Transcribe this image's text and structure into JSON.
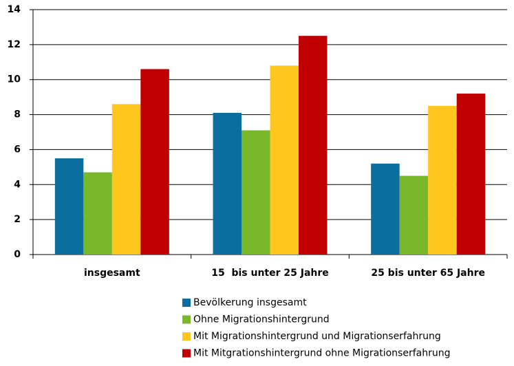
{
  "chart_data": {
    "type": "bar",
    "categories": [
      "insgesamt",
      "15  bis unter 25 Jahre",
      "25 bis unter 65 Jahre"
    ],
    "series": [
      {
        "name": "Bevölkerung insgesamt",
        "color": "#0b6e9f",
        "values": [
          5.5,
          8.1,
          5.2
        ]
      },
      {
        "name": "Ohne Migrationshintergrund",
        "color": "#78b82a",
        "values": [
          4.7,
          7.1,
          4.5
        ]
      },
      {
        "name": "Mit Migrationshintergrund und Migrationserfahrung",
        "color": "#ffc61e",
        "values": [
          8.6,
          10.8,
          8.5
        ]
      },
      {
        "name": "Mit Mitgrationshintergrund ohne Migrationserfahrung",
        "color": "#c00000",
        "values": [
          10.6,
          12.5,
          9.2
        ]
      }
    ],
    "ylim": [
      0,
      14
    ],
    "yticks": [
      0,
      2,
      4,
      6,
      8,
      10,
      12,
      14
    ],
    "grid": true,
    "legend": "bottom"
  }
}
